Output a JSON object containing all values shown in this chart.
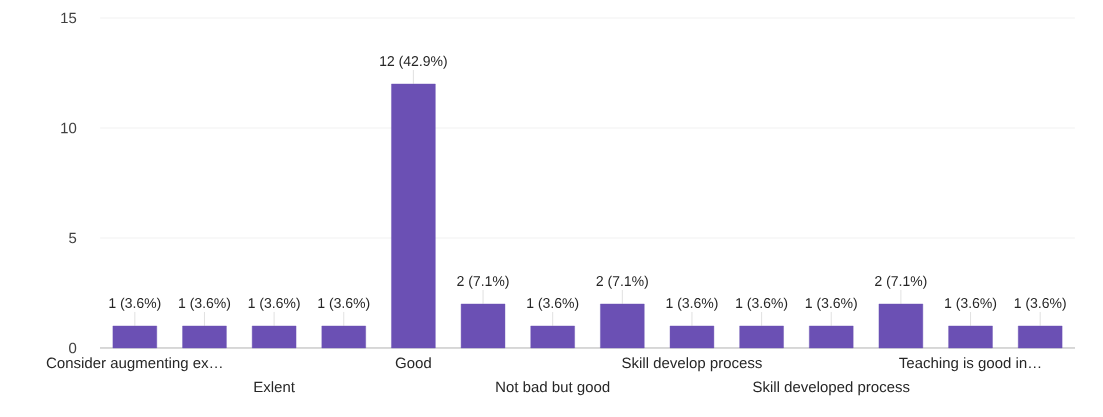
{
  "chart_data": {
    "type": "bar",
    "categories": [
      "Consider augmenting ex…",
      null,
      "Exlent",
      null,
      "Good",
      null,
      "Not bad but good",
      null,
      "Skill develop process",
      null,
      "Skill developed process",
      null,
      "Teaching is good in…",
      null
    ],
    "values": [
      1,
      1,
      1,
      1,
      12,
      2,
      1,
      2,
      1,
      1,
      1,
      2,
      1,
      1
    ],
    "value_labels": [
      "1 (3.6%)",
      "1 (3.6%)",
      "1 (3.6%)",
      "1 (3.6%)",
      "12 (42.9%)",
      "2 (7.1%)",
      "1 (3.6%)",
      "2 (7.1%)",
      "1 (3.6%)",
      "1 (3.6%)",
      "1 (3.6%)",
      "2 (7.1%)",
      "1 (3.6%)",
      "1 (3.6%)"
    ],
    "color": "#6b50b4",
    "ylim": [
      0,
      15
    ],
    "yticks": [
      0,
      5,
      10,
      15
    ],
    "grid": "y"
  }
}
